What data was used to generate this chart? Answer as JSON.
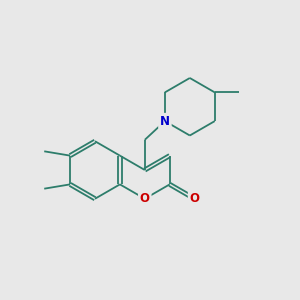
{
  "bg_color": "#e8e8e8",
  "bond_color": "#2d7d6b",
  "bond_width": 1.3,
  "atom_N_color": "#0000cc",
  "atom_O_color": "#cc0000",
  "font_size": 8.5,
  "fig_width": 3.0,
  "fig_height": 3.0,
  "dpi": 100,
  "xlim": [
    0,
    12
  ],
  "ylim": [
    0,
    12
  ]
}
